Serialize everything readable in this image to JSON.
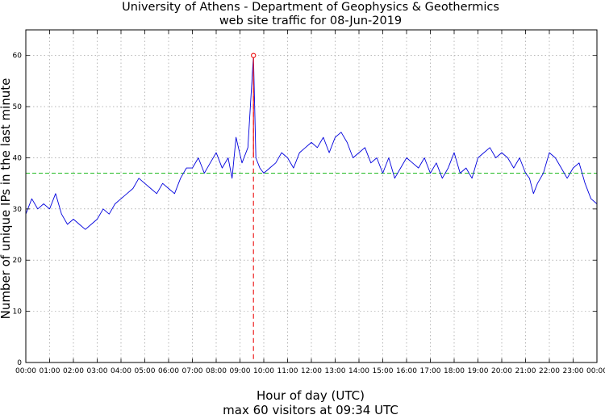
{
  "chart_data": {
    "type": "line",
    "title": "University of Athens - Department of Geophysics & Geothermics",
    "subtitle": "web site traffic for 08-Jun-2019",
    "xlabel": "Hour of day (UTC)",
    "ylabel": "Number of unique IPs in the last minute",
    "footer": "max 60 visitors at 09:34 UTC",
    "xlim": [
      0,
      1440
    ],
    "ylim": [
      0,
      65
    ],
    "grid": true,
    "x_tick_labels": [
      "00:00",
      "01:00",
      "02:00",
      "03:00",
      "04:00",
      "05:00",
      "06:00",
      "07:00",
      "08:00",
      "09:00",
      "10:00",
      "11:00",
      "12:00",
      "13:00",
      "14:00",
      "15:00",
      "16:00",
      "17:00",
      "18:00",
      "19:00",
      "20:00",
      "21:00",
      "22:00",
      "23:00",
      "00:00"
    ],
    "y_tick_labels": [
      "0",
      "10",
      "20",
      "30",
      "40",
      "50",
      "60"
    ],
    "average_line": {
      "value": 37,
      "color": "#22bb22"
    },
    "max_marker": {
      "minute": 574,
      "value": 60,
      "color": "#ee2222"
    },
    "series": [
      {
        "color": "#0000dd",
        "x": [
          0,
          15,
          30,
          45,
          60,
          75,
          90,
          105,
          120,
          135,
          150,
          165,
          180,
          195,
          210,
          225,
          240,
          255,
          270,
          285,
          300,
          315,
          330,
          345,
          360,
          375,
          390,
          405,
          420,
          435,
          450,
          465,
          480,
          495,
          510,
          520,
          530,
          545,
          560,
          574,
          580,
          590,
          600,
          615,
          630,
          645,
          660,
          675,
          690,
          705,
          720,
          735,
          750,
          765,
          780,
          795,
          810,
          825,
          840,
          855,
          870,
          885,
          900,
          915,
          930,
          945,
          960,
          975,
          990,
          1005,
          1020,
          1035,
          1050,
          1065,
          1080,
          1095,
          1110,
          1125,
          1140,
          1155,
          1170,
          1185,
          1200,
          1215,
          1230,
          1245,
          1260,
          1270,
          1280,
          1290,
          1305,
          1320,
          1335,
          1350,
          1365,
          1380,
          1395,
          1410,
          1425,
          1440
        ],
        "values": [
          29,
          32,
          30,
          31,
          30,
          33,
          29,
          27,
          28,
          27,
          26,
          27,
          28,
          30,
          29,
          31,
          32,
          33,
          34,
          36,
          35,
          34,
          33,
          35,
          34,
          33,
          36,
          38,
          38,
          40,
          37,
          39,
          41,
          38,
          40,
          36,
          44,
          39,
          42,
          60,
          40,
          38,
          37,
          38,
          39,
          41,
          40,
          38,
          41,
          42,
          43,
          42,
          44,
          41,
          44,
          45,
          43,
          40,
          41,
          42,
          39,
          40,
          37,
          40,
          36,
          38,
          40,
          39,
          38,
          40,
          37,
          39,
          36,
          38,
          41,
          37,
          38,
          36,
          40,
          41,
          42,
          40,
          41,
          40,
          38,
          40,
          37,
          36,
          33,
          35,
          37,
          41,
          40,
          38,
          36,
          38,
          39,
          35,
          32,
          31
        ]
      }
    ]
  }
}
